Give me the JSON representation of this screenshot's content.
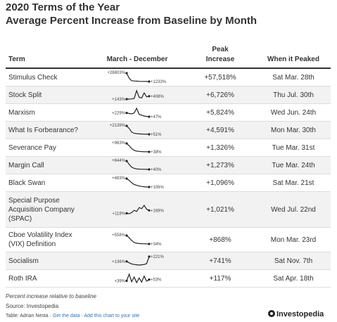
{
  "title": "2020 Terms of the Year",
  "subtitle": "Average Percent Increase from Baseline by Month",
  "columns": {
    "term": "Term",
    "range": "March - December",
    "peak_line1": "Peak",
    "peak_line2": "Increase",
    "when": "When it Peaked"
  },
  "chart_data": {
    "type": "table",
    "columns": [
      "Term",
      "March - December",
      "Peak Increase",
      "When it Peaked"
    ],
    "rows": [
      {
        "term": "Stimulus Check",
        "term_lines": [
          "Stimulus Check"
        ],
        "peak": "+57,518%",
        "when": "Sat Mar. 28th",
        "spark": {
          "series": [
            28803,
            12000,
            4000,
            3000,
            2500,
            2000,
            1800,
            1600,
            1400,
            1233
          ],
          "high_label": "+28803%",
          "end_label": "+1233%"
        }
      },
      {
        "term": "Stock Split",
        "term_lines": [
          "Stock Split"
        ],
        "peak": "+6,726%",
        "when": "Thu Jul. 30th",
        "spark": {
          "series": [
            143,
            150,
            160,
            200,
            900,
            300,
            250,
            700,
            350,
            408
          ],
          "start_label": "+143%",
          "end_label": "+408%"
        }
      },
      {
        "term": "Marxism",
        "term_lines": [
          "Marxism"
        ],
        "peak": "+5,824%",
        "when": "Wed Jun. 24th",
        "spark": {
          "series": [
            229,
            200,
            180,
            220,
            450,
            160,
            120,
            80,
            60,
            47
          ],
          "start_label": "+229%",
          "end_label": "+47%"
        }
      },
      {
        "term": "What Is Forbearance?",
        "term_lines": [
          "What Is Forbearance?"
        ],
        "peak": "+4,591%",
        "when": "Mon Mar. 30th",
        "spark": {
          "series": [
            2139,
            1500,
            600,
            300,
            200,
            150,
            120,
            90,
            70,
            51
          ],
          "high_label": "+2139%",
          "end_label": "+51%"
        }
      },
      {
        "term": "Severance Pay",
        "term_lines": [
          "Severance Pay"
        ],
        "peak": "+1,326%",
        "when": "Tue Mar. 31st",
        "spark": {
          "series": [
            963,
            700,
            400,
            200,
            120,
            90,
            70,
            50,
            45,
            38
          ],
          "high_label": "+963%",
          "end_label": "+38%"
        }
      },
      {
        "term": "Margin Call",
        "term_lines": [
          "Margin Call"
        ],
        "peak": "+1,273%",
        "when": "Tue Mar. 24th",
        "spark": {
          "series": [
            644,
            400,
            200,
            120,
            80,
            60,
            55,
            50,
            45,
            40
          ],
          "high_label": "+644%",
          "end_label": "+40%"
        }
      },
      {
        "term": "Black Swan",
        "term_lines": [
          "Black Swan"
        ],
        "peak": "+1,096%",
        "when": "Sat Mar. 21st",
        "spark": {
          "series": [
            483,
            400,
            300,
            220,
            180,
            150,
            130,
            120,
            110,
            106
          ],
          "high_label": "+483%",
          "end_label": "+106%"
        }
      },
      {
        "term": "Special Purpose Acquisition Company (SPAC)",
        "term_lines": [
          "Special Purpose",
          "Acquisition Company",
          "(SPAC)"
        ],
        "peak": "+1,021%",
        "when": "Wed Jul. 22nd",
        "spark": {
          "series": [
            118,
            110,
            130,
            170,
            150,
            220,
            200,
            260,
            190,
            169
          ],
          "start_label": "+118%",
          "end_label": "+169%"
        }
      },
      {
        "term": "Cboe Volatility Index (VIX) Definition",
        "term_lines": [
          "Cboe Volatility Index",
          "(VIX) Definition"
        ],
        "peak": "+868%",
        "when": "Mon Mar. 23rd",
        "spark": {
          "series": [
            558,
            420,
            250,
            120,
            80,
            60,
            50,
            45,
            40,
            34
          ],
          "high_label": "+558%",
          "end_label": "+34%"
        }
      },
      {
        "term": "Socialism",
        "term_lines": [
          "Socialism"
        ],
        "peak": "+741%",
        "when": "Sat Nov. 7th",
        "spark": {
          "series": [
            136,
            110,
            90,
            80,
            75,
            70,
            75,
            80,
            95,
            221
          ],
          "start_label": "+136%",
          "end_label": "+221%"
        }
      },
      {
        "term": "Roth IRA",
        "term_lines": [
          "Roth IRA"
        ],
        "peak": "+117%",
        "when": "Sat Apr. 18th",
        "spark": {
          "series": [
            39,
            110,
            30,
            80,
            20,
            70,
            25,
            90,
            35,
            53
          ],
          "start_label": "+39%",
          "end_label": "+53%"
        }
      }
    ]
  },
  "footer": {
    "note": "Percent increase relative to baseline",
    "source": "Source: Investopedia",
    "credit": "Table: Adrian Nesta",
    "separator": " · ",
    "get_data": "Get the data",
    "add_chart": "Add this chart to your site"
  },
  "brand": {
    "name": "Investopedia",
    "mark_icon": "investopedia-logo-icon"
  },
  "colors": {
    "spark_line": "#222222",
    "row_shade": "#f2f2f2",
    "link": "#3a6fb0"
  }
}
